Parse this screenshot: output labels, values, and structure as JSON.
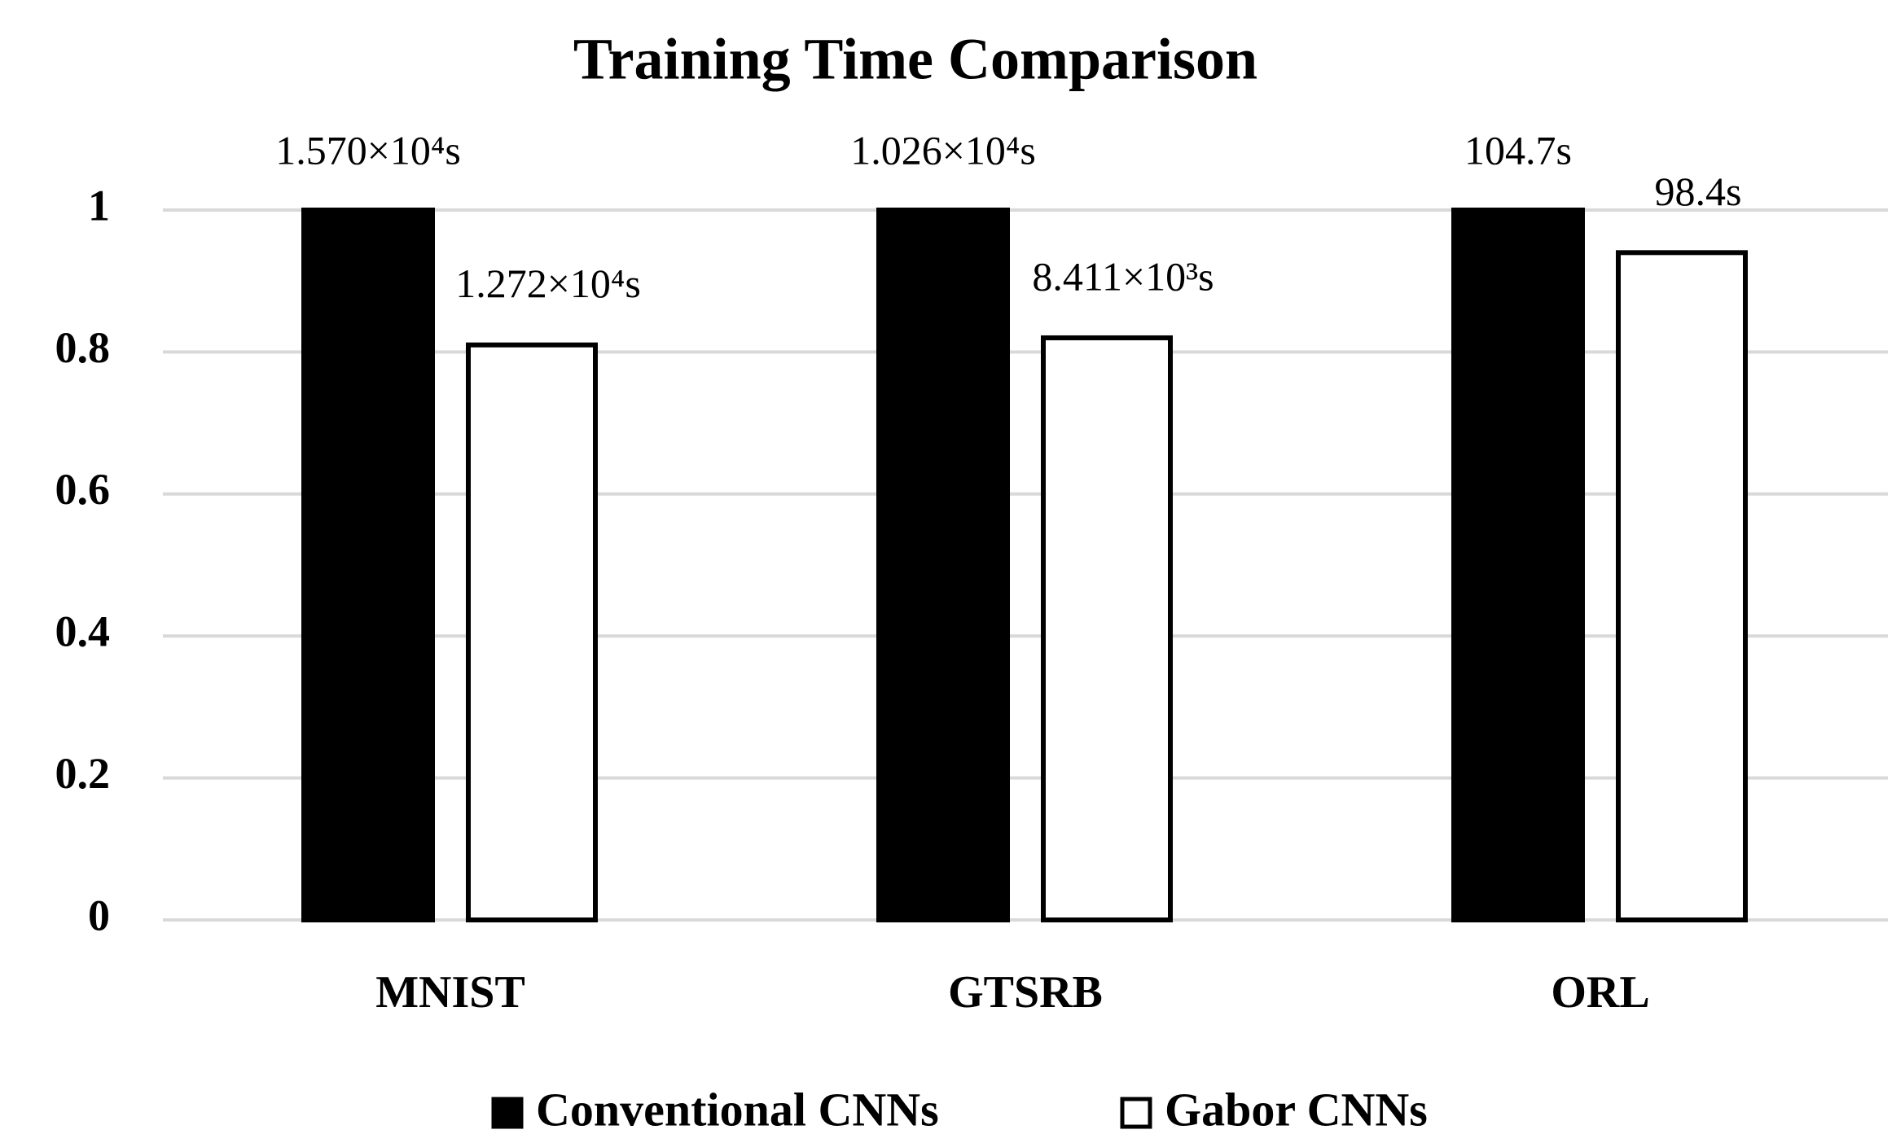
{
  "chart_data": {
    "type": "bar",
    "title": "Training Time Comparison",
    "categories": [
      "MNIST",
      "GTSRB",
      "ORL"
    ],
    "series": [
      {
        "name": "Conventional CNNs",
        "color": "#000000",
        "values": [
          1,
          1,
          1
        ],
        "value_labels": [
          "1.570×10⁴s",
          "1.026×10⁴s",
          "104.7s"
        ]
      },
      {
        "name": "Gabor CNNs",
        "color": "#ffffff",
        "values": [
          0.81,
          0.82,
          0.94
        ],
        "value_labels": [
          "1.272×10⁴s",
          "8.411×10³s",
          "98.4s"
        ]
      }
    ],
    "ylim": [
      0,
      1
    ],
    "yticks": [
      0,
      0.2,
      0.4,
      0.6,
      0.8,
      1
    ],
    "grid": true,
    "legend": "bottom"
  }
}
